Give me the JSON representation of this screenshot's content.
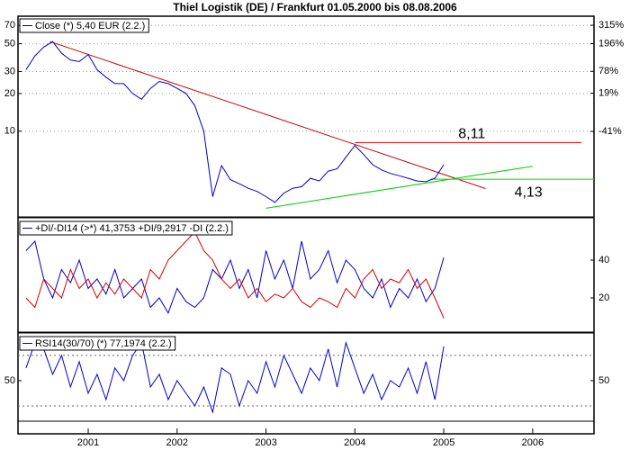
{
  "chart_data": [
    {
      "type": "line",
      "title": "Thiel Logistik (DE) / Frankfurt 01.05.2000 bis 08.08.2006",
      "yscale": "log",
      "ylim": [
        2.1,
        83
      ],
      "yticks": [
        10,
        20,
        30,
        50,
        70
      ],
      "ytick_side": "left",
      "grid": true,
      "y2scale": "log",
      "y2lim": [
        -87.5,
        390
      ],
      "y2ticks": [
        {
          "value": 315,
          "label": "315%"
        },
        {
          "value": 196,
          "label": "196%"
        },
        {
          "value": 78,
          "label": "78%"
        },
        {
          "value": 19,
          "label": "19%"
        },
        {
          "value": -41,
          "label": "-41%"
        }
      ],
      "xlim": [
        2000.21,
        2006.69
      ],
      "x": [
        2000.3,
        2000.4,
        2000.5,
        2000.6,
        2000.7,
        2000.8,
        2000.9,
        2001.0,
        2001.1,
        2001.2,
        2001.3,
        2001.4,
        2001.5,
        2001.6,
        2001.7,
        2001.8,
        2001.9,
        2002.0,
        2002.1,
        2002.2,
        2002.3,
        2002.4,
        2002.5,
        2002.6,
        2002.7,
        2002.8,
        2002.9,
        2003.0,
        2003.1,
        2003.2,
        2003.3,
        2003.4,
        2003.5,
        2003.6,
        2003.7,
        2003.8,
        2003.9,
        2004.0,
        2004.1,
        2004.2,
        2004.3,
        2004.4,
        2004.5,
        2004.6,
        2004.7,
        2004.8,
        2004.9,
        2005.0
      ],
      "series": [
        {
          "name": "Close (*) 5,40 EUR (2.2.)",
          "color": "#0000cc",
          "values": [
            31,
            40,
            47,
            52,
            42,
            37,
            36,
            41,
            31,
            27,
            24,
            24,
            20,
            18,
            22,
            25,
            24,
            22,
            20,
            16,
            10,
            3.0,
            5.3,
            4.1,
            3.8,
            3.5,
            3.3,
            3.0,
            2.7,
            3.2,
            3.5,
            3.6,
            4.2,
            4.0,
            4.8,
            5.0,
            6.2,
            7.7,
            6.5,
            5.4,
            4.9,
            4.6,
            4.4,
            4.2,
            4.0,
            3.95,
            4.2,
            5.4
          ]
        }
      ],
      "trendlines": [
        {
          "color": "#cc0000",
          "x": [
            2000.57,
            2005.47
          ],
          "values": [
            52,
            3.48
          ]
        },
        {
          "color": "#00cc00",
          "x": [
            2003.0,
            2006.0
          ],
          "values": [
            2.42,
            5.25
          ]
        }
      ],
      "levels": [
        {
          "value": 8.11,
          "label": "8,11",
          "color": "#ee0000",
          "x": [
            2004.0,
            2006.55
          ],
          "position": "above"
        },
        {
          "value": 4.13,
          "label": "4,13",
          "color": "#00dd00",
          "x": [
            2004.85,
            2006.69
          ],
          "position": "below"
        }
      ]
    },
    {
      "type": "line",
      "legend": "+DI/-DI14 (>*) 41,3753 +DI/9,2917 -DI (2.2.)",
      "ylim": [
        2.4,
        61.9
      ],
      "yticks": [
        20,
        40
      ],
      "ytick_side": "right",
      "grid": false,
      "xlim": [
        2000.21,
        2006.69
      ],
      "x": [
        2000.3,
        2000.4,
        2000.5,
        2000.6,
        2000.7,
        2000.8,
        2000.9,
        2001.0,
        2001.1,
        2001.2,
        2001.3,
        2001.4,
        2001.5,
        2001.6,
        2001.7,
        2001.8,
        2001.9,
        2002.0,
        2002.1,
        2002.2,
        2002.3,
        2002.4,
        2002.5,
        2002.6,
        2002.7,
        2002.8,
        2002.9,
        2003.0,
        2003.1,
        2003.2,
        2003.3,
        2003.4,
        2003.5,
        2003.6,
        2003.7,
        2003.8,
        2003.9,
        2004.0,
        2004.1,
        2004.2,
        2004.3,
        2004.4,
        2004.5,
        2004.6,
        2004.7,
        2004.8,
        2004.9,
        2005.0
      ],
      "series": [
        {
          "color": "#0000cc",
          "values": [
            45,
            50,
            30,
            20,
            35,
            28,
            40,
            25,
            30,
            22,
            35,
            20,
            25,
            30,
            15,
            20,
            12,
            25,
            18,
            15,
            20,
            35,
            30,
            40,
            25,
            35,
            20,
            45,
            30,
            40,
            25,
            50,
            30,
            35,
            45,
            28,
            40,
            35,
            25,
            20,
            30,
            15,
            25,
            20,
            30,
            18,
            25,
            41.3753
          ]
        },
        {
          "color": "#dd0000",
          "values": [
            20,
            15,
            30,
            25,
            20,
            35,
            25,
            30,
            20,
            28,
            22,
            30,
            25,
            20,
            35,
            30,
            40,
            45,
            50,
            55,
            45,
            40,
            30,
            25,
            30,
            20,
            25,
            18,
            22,
            20,
            25,
            18,
            15,
            20,
            18,
            15,
            25,
            20,
            30,
            35,
            25,
            30,
            28,
            35,
            25,
            30,
            20,
            9.2917
          ]
        }
      ]
    },
    {
      "type": "line",
      "legend": "RSI14(30/70) (*) 77,1974 (2.2.)",
      "ylim": [
        17.9,
        87
      ],
      "yticks": [
        50
      ],
      "ytick_side": "both",
      "grid": false,
      "bands": [
        30,
        70
      ],
      "xlim": [
        2000.21,
        2006.69
      ],
      "xticks": [
        2001,
        2002,
        2003,
        2004,
        2005,
        2006
      ],
      "x": [
        2000.3,
        2000.4,
        2000.5,
        2000.6,
        2000.7,
        2000.8,
        2000.9,
        2001.0,
        2001.1,
        2001.2,
        2001.3,
        2001.4,
        2001.5,
        2001.6,
        2001.7,
        2001.8,
        2001.9,
        2002.0,
        2002.1,
        2002.2,
        2002.3,
        2002.4,
        2002.5,
        2002.6,
        2002.7,
        2002.8,
        2002.9,
        2003.0,
        2003.1,
        2003.2,
        2003.3,
        2003.4,
        2003.5,
        2003.6,
        2003.7,
        2003.8,
        2003.9,
        2004.0,
        2004.1,
        2004.2,
        2004.3,
        2004.4,
        2004.5,
        2004.6,
        2004.7,
        2004.8,
        2004.9,
        2005.0
      ],
      "series": [
        {
          "color": "#0000cc",
          "values": [
            60,
            80,
            75,
            55,
            70,
            45,
            65,
            40,
            55,
            35,
            60,
            50,
            70,
            80,
            45,
            55,
            35,
            50,
            40,
            30,
            45,
            25,
            60,
            55,
            30,
            50,
            40,
            65,
            45,
            70,
            55,
            40,
            60,
            50,
            75,
            45,
            80,
            60,
            40,
            55,
            35,
            50,
            45,
            60,
            40,
            65,
            35,
            77.1974
          ]
        }
      ]
    }
  ]
}
